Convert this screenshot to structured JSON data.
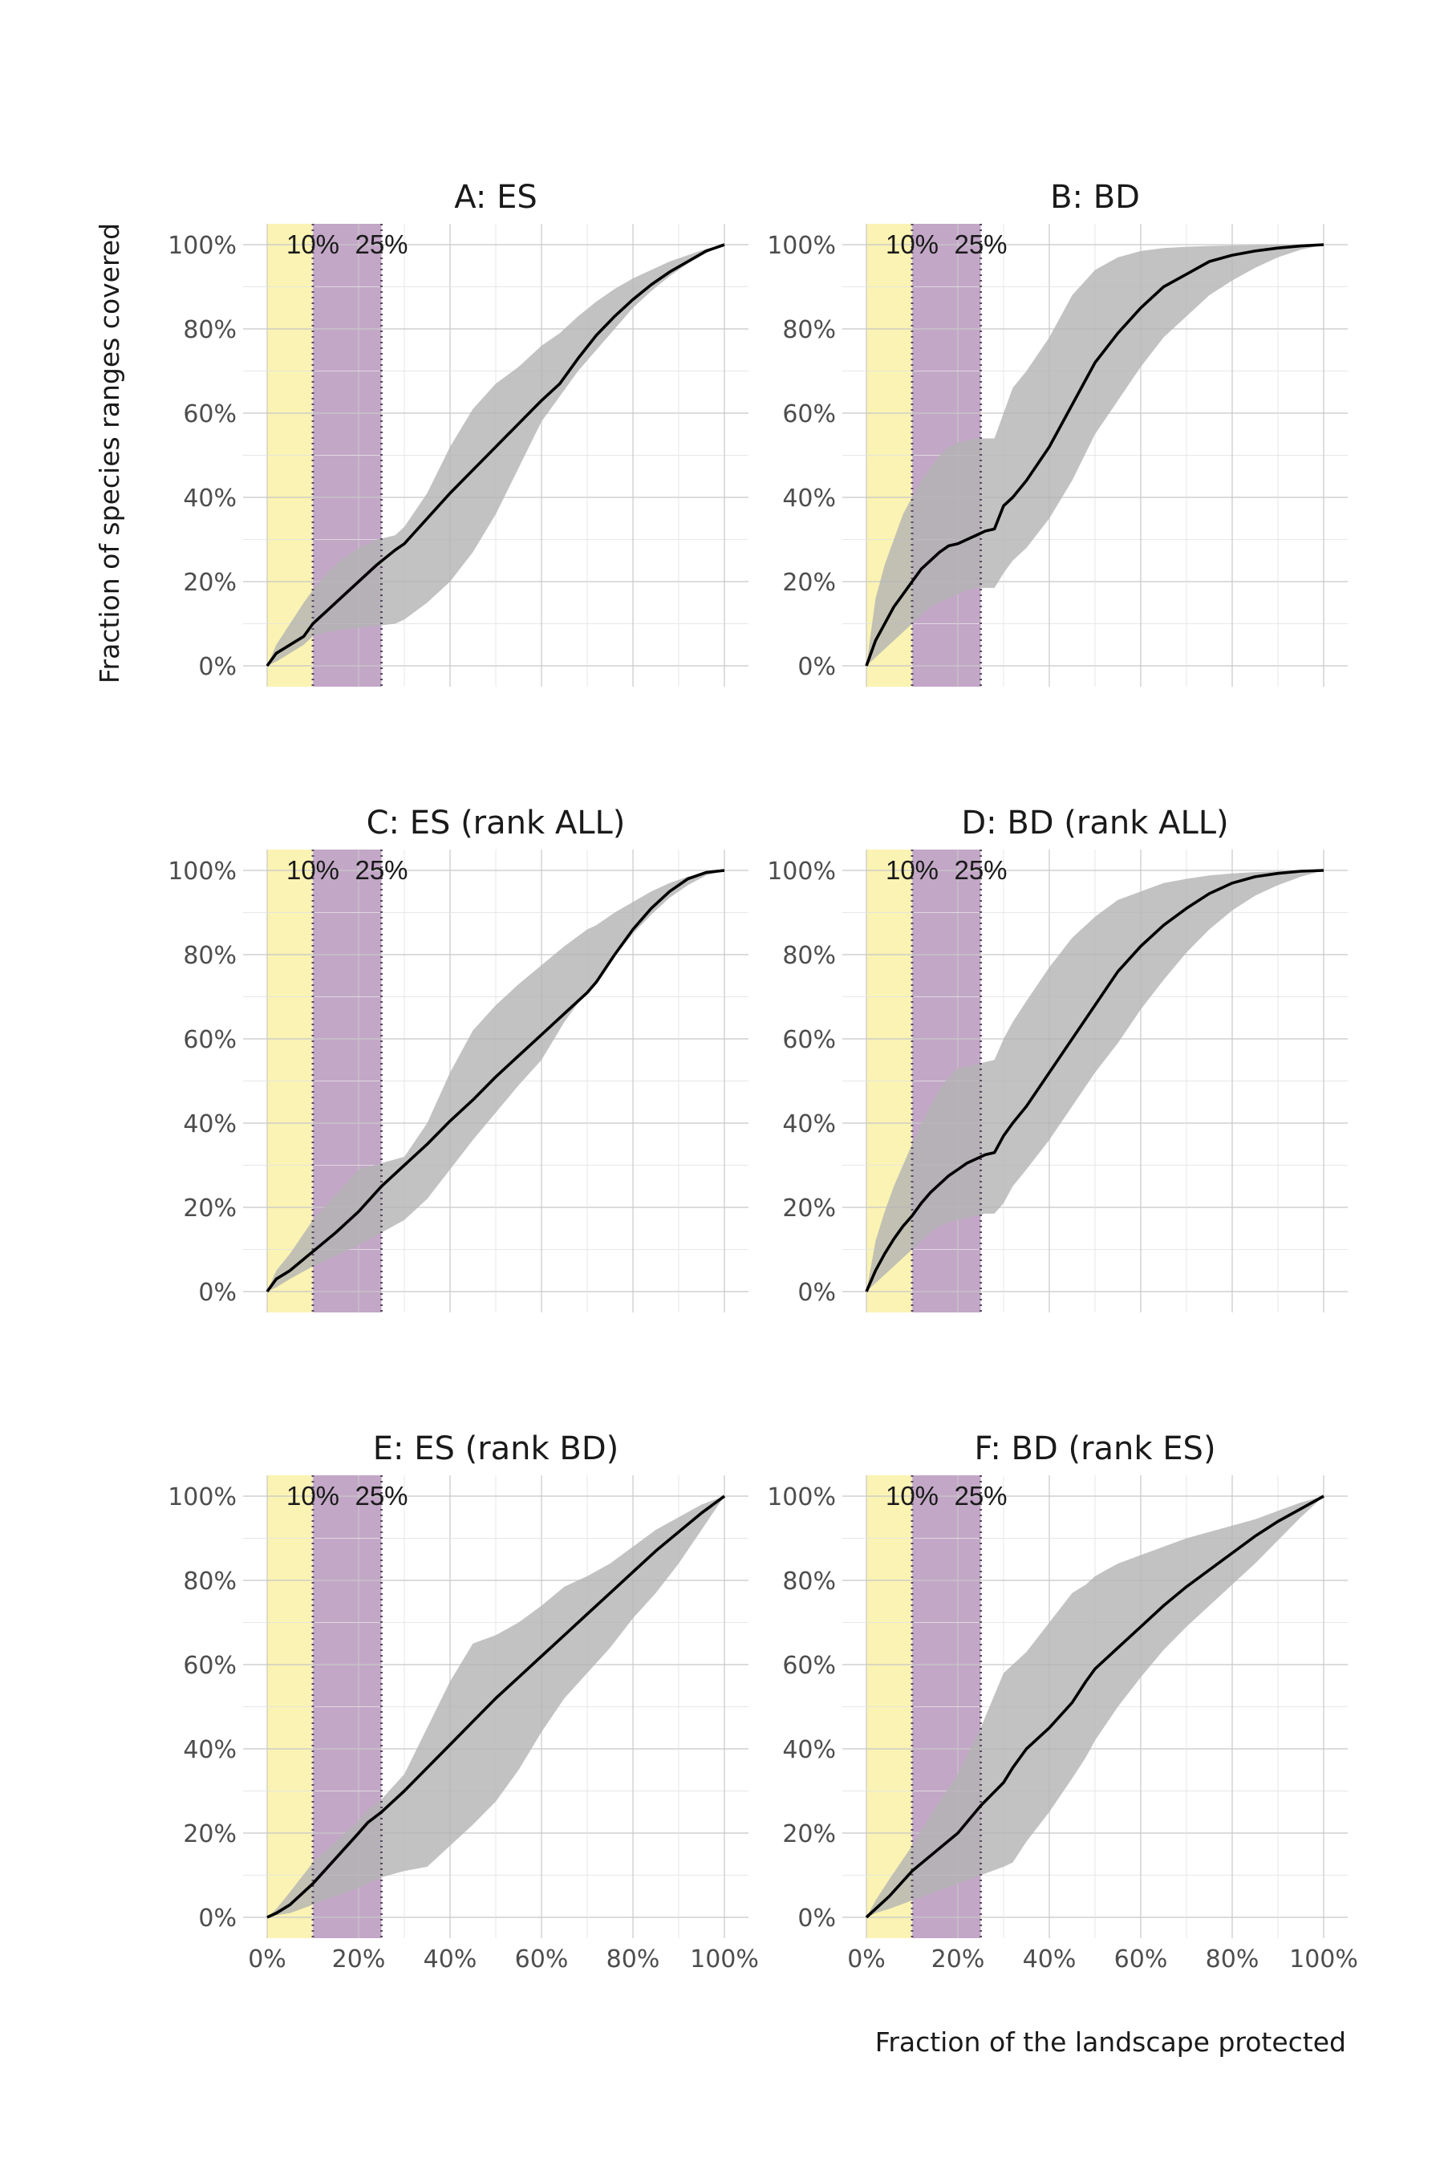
{
  "figure": {
    "ylabel": "Fraction of species ranges covered",
    "xlabel": "Fraction of the landscape protected"
  },
  "colors": {
    "band_10": "#fbf3b3",
    "band_25": "#c3a7c7",
    "ribbon": "#b3b3b3",
    "line": "#000000",
    "grid": "#d9d9d9",
    "threshold_line": "#5a4a60"
  },
  "chart_data": [
    {
      "type": "line",
      "title": "A: ES",
      "x": [
        0,
        2,
        5,
        8,
        10,
        13,
        16,
        20,
        24,
        28,
        30,
        35,
        40,
        45,
        50,
        55,
        60,
        64,
        68,
        72,
        76,
        80,
        84,
        88,
        92,
        96,
        100
      ],
      "y": [
        0,
        3,
        5,
        7,
        10,
        13,
        16,
        20,
        24,
        27.5,
        29,
        35,
        41,
        46.5,
        52,
        57.5,
        63,
        67,
        73,
        78.5,
        83,
        87,
        90.5,
        93.5,
        96,
        98.5,
        100
      ],
      "lower": [
        0,
        1,
        3,
        5,
        7,
        8,
        8.5,
        9,
        9.5,
        10,
        11,
        15,
        20,
        27,
        36,
        47,
        58,
        64,
        70,
        75,
        80,
        85,
        89,
        92.5,
        95.5,
        98,
        100
      ],
      "upper": [
        0,
        5,
        10,
        15,
        18,
        22,
        25,
        28,
        30,
        31,
        33,
        41,
        52,
        61,
        67,
        71,
        76,
        79,
        83,
        86.5,
        89.5,
        92,
        94,
        96,
        97.5,
        99,
        100
      ],
      "xlim": [
        0,
        100
      ],
      "ylim": [
        0,
        100
      ],
      "threshold_labels": [
        "10%",
        "25%"
      ]
    },
    {
      "type": "line",
      "title": "B: BD",
      "x": [
        0,
        2,
        4,
        6,
        8,
        10,
        12,
        14,
        16,
        18,
        20,
        22,
        24,
        26,
        28,
        30,
        32,
        35,
        40,
        45,
        50,
        55,
        60,
        65,
        70,
        75,
        80,
        85,
        90,
        95,
        100
      ],
      "y": [
        0,
        6,
        10,
        14,
        17,
        20,
        23,
        25,
        27,
        28.5,
        29,
        30,
        31,
        32,
        32.5,
        38,
        40,
        44,
        52,
        62,
        72,
        79,
        85,
        90,
        93,
        96,
        97.5,
        98.5,
        99.2,
        99.7,
        100
      ],
      "lower": [
        0,
        2,
        4,
        6,
        8,
        10,
        12,
        14,
        15,
        16,
        17,
        18,
        18.5,
        18.5,
        18.5,
        22,
        25,
        28,
        35,
        44,
        55,
        63,
        71,
        78,
        83,
        88,
        91.5,
        94.5,
        97,
        98.8,
        100
      ],
      "upper": [
        0,
        16,
        24,
        30,
        36,
        40,
        44,
        47,
        50,
        52,
        53,
        53.5,
        54,
        54,
        54,
        60,
        66,
        70,
        78,
        88,
        94,
        97,
        98.5,
        99.2,
        99.5,
        99.7,
        99.8,
        99.9,
        100,
        100,
        100
      ],
      "xlim": [
        0,
        100
      ],
      "ylim": [
        0,
        100
      ],
      "threshold_labels": [
        "10%",
        "25%"
      ]
    },
    {
      "type": "line",
      "title": "C: ES (rank ALL)",
      "x": [
        0,
        2,
        5,
        10,
        15,
        20,
        25,
        30,
        35,
        40,
        45,
        50,
        55,
        60,
        65,
        70,
        72,
        76,
        80,
        84,
        88,
        92,
        96,
        100
      ],
      "y": [
        0,
        3,
        5,
        9.5,
        14,
        19,
        25,
        30,
        35,
        40.5,
        45.5,
        51,
        56,
        61,
        66,
        71,
        73.5,
        80,
        86,
        91,
        95,
        98,
        99.5,
        100
      ],
      "lower": [
        0,
        1,
        3,
        6,
        8.5,
        11,
        14,
        17,
        22,
        29,
        36,
        42.5,
        49,
        55,
        64,
        71.5,
        73.5,
        79.5,
        85,
        89.5,
        93.5,
        96.5,
        98.8,
        100
      ],
      "upper": [
        0,
        5,
        9,
        17,
        23,
        29,
        30.5,
        32,
        40,
        52,
        62,
        68,
        73,
        77.5,
        82,
        86,
        87,
        90,
        92.5,
        95,
        97,
        98.5,
        99.5,
        100
      ],
      "xlim": [
        0,
        100
      ],
      "ylim": [
        0,
        100
      ],
      "threshold_labels": [
        "10%",
        "25%"
      ]
    },
    {
      "type": "line",
      "title": "D: BD (rank ALL)",
      "x": [
        0,
        2,
        4,
        6,
        8,
        10,
        12,
        14,
        16,
        18,
        20,
        22,
        24,
        26,
        28,
        30,
        32,
        35,
        40,
        45,
        50,
        55,
        60,
        65,
        70,
        75,
        80,
        85,
        90,
        95,
        100
      ],
      "y": [
        0,
        5,
        9,
        12.5,
        15.5,
        18,
        21,
        23.5,
        25.5,
        27.5,
        29,
        30.5,
        31.5,
        32.5,
        33,
        37,
        40,
        44,
        52,
        60,
        68,
        76,
        82,
        87,
        91,
        94.5,
        97,
        98.5,
        99.3,
        99.8,
        100
      ],
      "lower": [
        0,
        2,
        4,
        6,
        8,
        10,
        12,
        14,
        15.5,
        16.5,
        17,
        17.5,
        18,
        18.5,
        18.5,
        21,
        25,
        29,
        36,
        44,
        52,
        59,
        67,
        74,
        80.5,
        86,
        90.5,
        94,
        96.5,
        98.5,
        100
      ],
      "upper": [
        0,
        12,
        19,
        25,
        30,
        35,
        40,
        44,
        48,
        51,
        53,
        53.5,
        54,
        54.5,
        55,
        60,
        64,
        69,
        77,
        84,
        89,
        93,
        95,
        97,
        98,
        98.8,
        99.3,
        99.6,
        99.8,
        99.9,
        100
      ],
      "xlim": [
        0,
        100
      ],
      "ylim": [
        0,
        100
      ],
      "threshold_labels": [
        "10%",
        "25%"
      ]
    },
    {
      "type": "line",
      "title": "E: ES (rank BD)",
      "x": [
        0,
        2,
        5,
        10,
        15,
        20,
        22,
        25,
        30,
        35,
        40,
        45,
        50,
        55,
        60,
        65,
        70,
        75,
        80,
        85,
        90,
        95,
        100
      ],
      "y": [
        0,
        1,
        3,
        8,
        14,
        20,
        22.5,
        25,
        30,
        35.5,
        41,
        46.5,
        52,
        57,
        62,
        67,
        72,
        77,
        82,
        87,
        91.5,
        96,
        100
      ],
      "lower": [
        0,
        0.5,
        1,
        3,
        5,
        7,
        8,
        9.5,
        11,
        12,
        17,
        22,
        27.5,
        35,
        44,
        52,
        58,
        64,
        71,
        77,
        84,
        92,
        100
      ],
      "upper": [
        0,
        2,
        6,
        13,
        18,
        23,
        25.5,
        28,
        34,
        45,
        56,
        65,
        67,
        70,
        74,
        78.5,
        81,
        84,
        88,
        92,
        95,
        98,
        100
      ],
      "xlim": [
        0,
        100
      ],
      "ylim": [
        0,
        100
      ],
      "threshold_labels": [
        "10%",
        "25%"
      ]
    },
    {
      "type": "line",
      "title": "F: BD (rank ES)",
      "x": [
        0,
        2,
        5,
        10,
        15,
        20,
        25,
        30,
        32,
        35,
        40,
        45,
        48,
        50,
        55,
        60,
        65,
        70,
        75,
        80,
        85,
        90,
        95,
        100
      ],
      "y": [
        0,
        2,
        5,
        11,
        15.5,
        20,
        26.5,
        32,
        35.5,
        40,
        45,
        51,
        56,
        59,
        64,
        69,
        74,
        78.5,
        82.5,
        86.5,
        90.5,
        94,
        97,
        100
      ],
      "lower": [
        0,
        1,
        2,
        4,
        6,
        8,
        10,
        12,
        13,
        18,
        25,
        33,
        38,
        42,
        50,
        57,
        63.5,
        69,
        74,
        79,
        84,
        89.5,
        95,
        100
      ],
      "upper": [
        0,
        4,
        9,
        17,
        26,
        34,
        45,
        58,
        60,
        63,
        70,
        77,
        79,
        81,
        84,
        86,
        88,
        90,
        91.5,
        93,
        94.5,
        96.5,
        98.5,
        100
      ],
      "xlim": [
        0,
        100
      ],
      "ylim": [
        0,
        100
      ],
      "threshold_labels": [
        "10%",
        "25%"
      ]
    }
  ]
}
